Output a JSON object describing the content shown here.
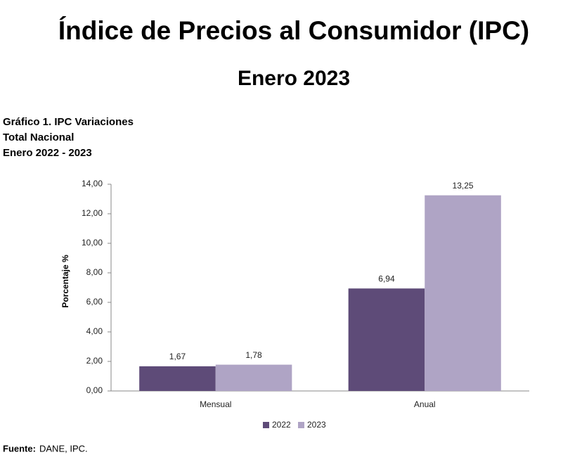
{
  "chart_data": {
    "type": "bar",
    "title": "Índice de Precios al Consumidor (IPC)",
    "subtitle": "Enero 2023",
    "chart_title": [
      "Gráfico 1. IPC Variaciones",
      "Total Nacional",
      "Enero 2022 - 2023"
    ],
    "y_label": "Porcentaje %",
    "categories": [
      "Mensual",
      "Anual"
    ],
    "series": [
      {
        "name": "2022",
        "color": "#5e4b78",
        "values": [
          1.67,
          6.94
        ],
        "value_labels": [
          "1,67",
          "6,94"
        ]
      },
      {
        "name": "2023",
        "color": "#afa4c5",
        "values": [
          1.78,
          13.25
        ],
        "value_labels": [
          "1,78",
          "13,25"
        ]
      }
    ],
    "ylim": [
      0,
      14
    ],
    "yticks": [
      {
        "value": 0,
        "label": "0,00"
      },
      {
        "value": 2,
        "label": "2,00"
      },
      {
        "value": 4,
        "label": "4,00"
      },
      {
        "value": 6,
        "label": "6,00"
      },
      {
        "value": 8,
        "label": "8,00"
      },
      {
        "value": 10,
        "label": "10,00"
      },
      {
        "value": 12,
        "label": "12,00"
      },
      {
        "value": 14,
        "label": "14,00"
      }
    ],
    "grid": false,
    "legend": "bottom",
    "source_label": "Fuente:",
    "source": "DANE, IPC."
  }
}
